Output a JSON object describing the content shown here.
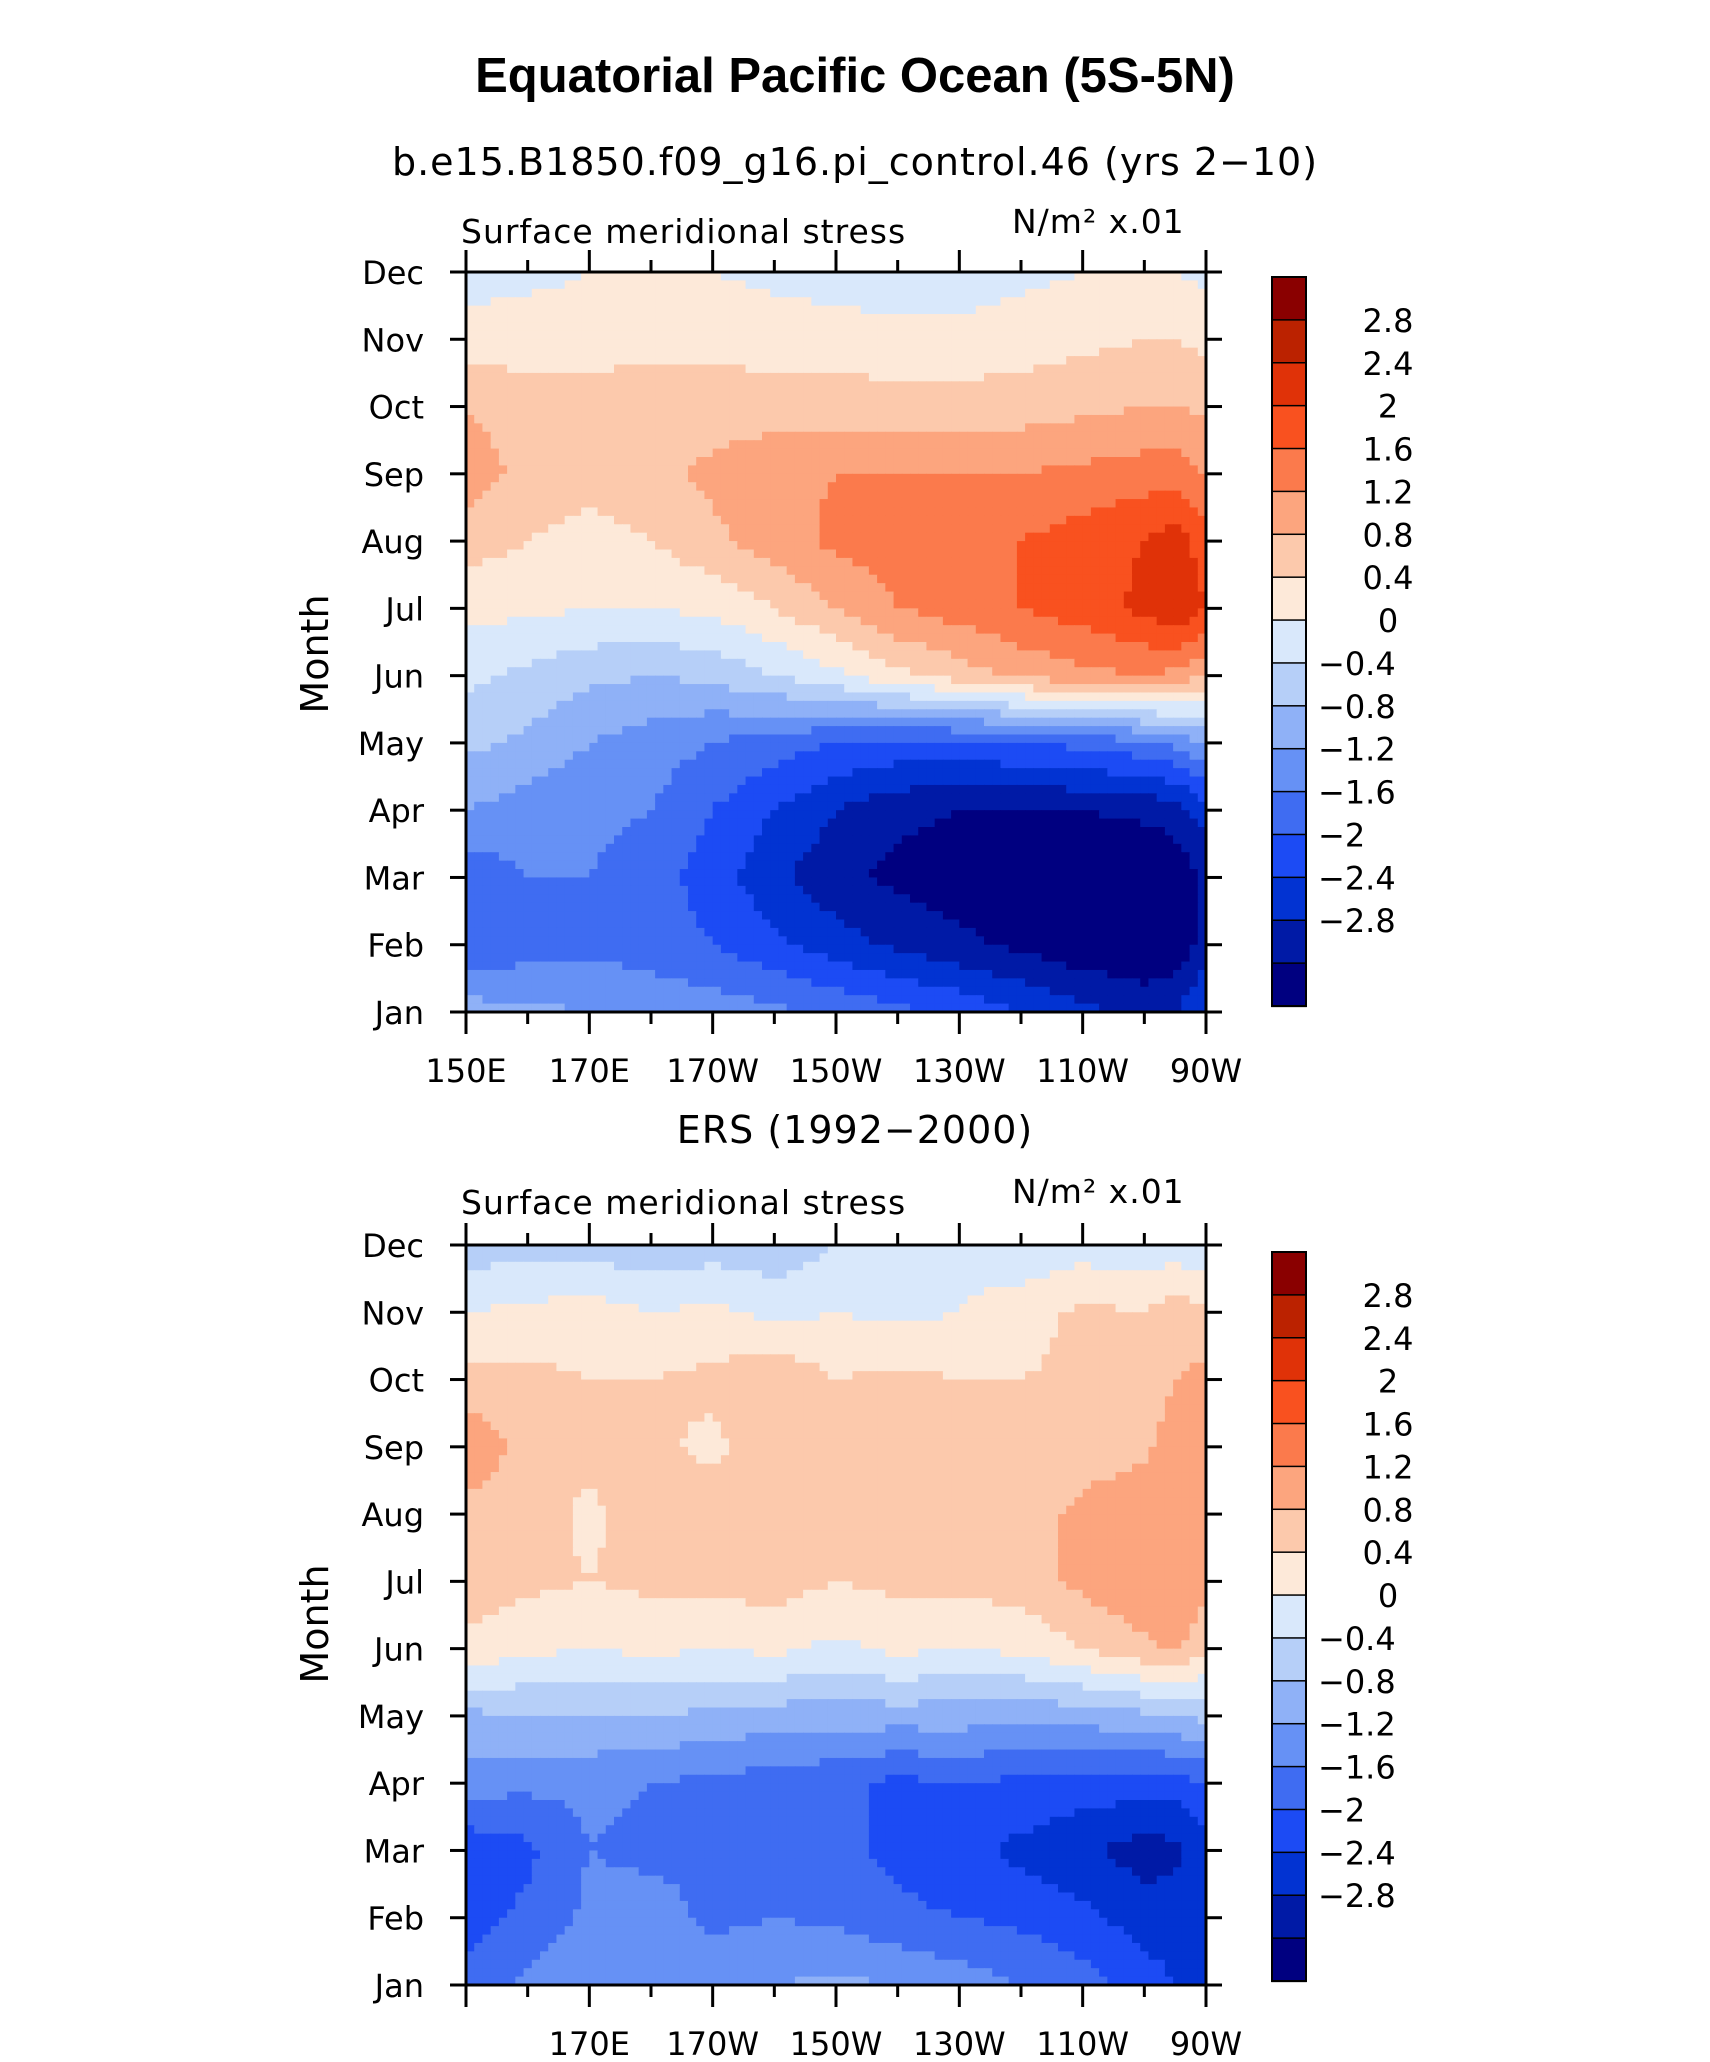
{
  "title": "Equatorial Pacific Ocean (5S-5N)",
  "colors": {
    "palette": [
      "#000080",
      "#001aa6",
      "#0233d2",
      "#1c4bf4",
      "#3f6cf2",
      "#6691f5",
      "#8fb1f7",
      "#b6cff8",
      "#d9e8fb",
      "#fde9d9",
      "#fcc9ac",
      "#fca57e",
      "#fb7a4c",
      "#f9511f",
      "#e03208",
      "#bb2200",
      "#8a0000"
    ],
    "axis": "#000000"
  },
  "chart_data": [
    {
      "type": "heatmap",
      "title": "b.e15.B1850.f09_g16.pi_control.46 (yrs 2−10)",
      "left_label": "Surface meridional stress",
      "units_label": "N/m² x.01",
      "ylabel": "Month",
      "x_ticks": [
        "150E",
        "170E",
        "170W",
        "150W",
        "130W",
        "110W",
        "90W"
      ],
      "x_range": [
        150,
        270
      ],
      "y_ticks": [
        "Jan",
        "Feb",
        "Mar",
        "Apr",
        "May",
        "Jun",
        "Jul",
        "Aug",
        "Sep",
        "Oct",
        "Nov",
        "Dec"
      ],
      "colorbar_labels": [
        "2.8",
        "2.4",
        "2",
        "1.6",
        "1.2",
        "0.8",
        "0.4",
        "0",
        "−0.4",
        "−0.8",
        "−1.2",
        "−1.6",
        "−2",
        "−2.4",
        "−2.8"
      ],
      "levels": [
        -3.2,
        -2.8,
        -2.4,
        -2.0,
        -1.6,
        -1.2,
        -0.8,
        -0.4,
        0,
        0.4,
        0.8,
        1.2,
        1.6,
        2.0,
        2.4,
        2.8,
        3.2
      ],
      "lon": [
        150,
        160,
        170,
        180,
        190,
        200,
        210,
        220,
        230,
        240,
        250,
        260,
        265,
        270
      ],
      "values": [
        [
          -0.6,
          -0.7,
          -0.8,
          -0.9,
          -1.0,
          -1.1,
          -1.3,
          -1.5,
          -1.7,
          -2.0,
          -2.3,
          -2.5,
          -2.4,
          -2.0
        ],
        [
          -1.6,
          -1.4,
          -1.3,
          -1.4,
          -1.6,
          -1.9,
          -2.2,
          -2.5,
          -2.7,
          -2.9,
          -3.1,
          -3.2,
          -3.1,
          -2.6
        ],
        [
          -1.5,
          -1.2,
          -1.2,
          -1.4,
          -1.8,
          -2.3,
          -2.7,
          -2.9,
          -3.0,
          -3.1,
          -3.2,
          -3.2,
          -3.1,
          -2.7
        ],
        [
          -0.8,
          -1.0,
          -1.1,
          -1.2,
          -1.6,
          -2.0,
          -2.4,
          -2.7,
          -2.8,
          -2.8,
          -2.8,
          -2.7,
          -2.6,
          -2.2
        ],
        [
          -0.3,
          -0.5,
          -0.8,
          -1.0,
          -1.2,
          -1.4,
          -1.6,
          -1.7,
          -1.7,
          -1.6,
          -1.5,
          -1.3,
          -1.1,
          -0.8
        ],
        [
          0.1,
          -0.1,
          -0.3,
          -0.4,
          -0.3,
          0.0,
          0.3,
          0.7,
          1.0,
          1.3,
          1.5,
          1.6,
          1.5,
          1.2
        ],
        [
          0.5,
          0.5,
          0.4,
          0.4,
          0.5,
          0.8,
          1.2,
          1.6,
          1.8,
          2.0,
          2.2,
          2.5,
          2.8,
          2.4
        ],
        [
          1.0,
          0.8,
          0.6,
          0.8,
          1.1,
          1.4,
          1.7,
          1.8,
          1.9,
          2.0,
          2.2,
          2.4,
          2.6,
          2.2
        ],
        [
          1.4,
          1.1,
          1.0,
          1.1,
          1.3,
          1.5,
          1.6,
          1.6,
          1.6,
          1.6,
          1.7,
          1.8,
          1.8,
          1.6
        ],
        [
          1.2,
          1.0,
          1.0,
          1.0,
          1.0,
          1.0,
          1.0,
          1.0,
          1.0,
          1.0,
          1.1,
          1.2,
          1.2,
          1.1
        ],
        [
          0.6,
          0.6,
          0.6,
          0.7,
          0.7,
          0.6,
          0.6,
          0.5,
          0.5,
          0.6,
          0.7,
          0.8,
          0.8,
          0.7
        ],
        [
          0.2,
          0.3,
          0.4,
          0.4,
          0.4,
          0.3,
          0.2,
          0.2,
          0.2,
          0.3,
          0.4,
          0.5,
          0.4,
          0.3
        ]
      ]
    },
    {
      "type": "heatmap",
      "title": "ERS (1992−2000)",
      "left_label": "Surface meridional stress",
      "units_label": "N/m² x.01",
      "ylabel": "Month",
      "x_ticks": [
        "170E",
        "170W",
        "150W",
        "130W",
        "110W",
        "90W"
      ],
      "x_range": [
        150,
        270
      ],
      "y_ticks": [
        "Jan",
        "Feb",
        "Mar",
        "Apr",
        "May",
        "Jun",
        "Jul",
        "Aug",
        "Sep",
        "Oct",
        "Nov",
        "Dec"
      ],
      "colorbar_labels": [
        "2.8",
        "2.4",
        "2",
        "1.6",
        "1.2",
        "0.8",
        "0.4",
        "0",
        "−0.4",
        "−0.8",
        "−1.2",
        "−1.6",
        "−2",
        "−2.4",
        "−2.8"
      ],
      "levels": [
        -3.2,
        -2.8,
        -2.4,
        -2.0,
        -1.6,
        -1.2,
        -0.8,
        -0.4,
        0,
        0.4,
        0.8,
        1.2,
        1.6,
        2.0,
        2.4,
        2.8,
        3.2
      ],
      "lon": [
        150,
        160,
        170,
        180,
        190,
        200,
        210,
        220,
        230,
        240,
        250,
        260,
        265,
        270
      ],
      "values": [
        [
          -1.4,
          -1.1,
          -0.9,
          -0.8,
          -0.9,
          -0.8,
          -0.7,
          -0.8,
          -1.0,
          -1.2,
          -1.4,
          -1.8,
          -2.0,
          -2.0
        ],
        [
          -1.8,
          -1.5,
          -1.1,
          -1.0,
          -1.3,
          -1.2,
          -1.3,
          -1.5,
          -1.6,
          -1.7,
          -1.9,
          -2.2,
          -2.2,
          -2.1
        ],
        [
          -1.9,
          -1.7,
          -1.2,
          -1.3,
          -1.3,
          -1.4,
          -1.5,
          -1.7,
          -1.9,
          -2.1,
          -2.3,
          -2.6,
          -2.5,
          -2.2
        ],
        [
          -1.0,
          -1.1,
          -1.1,
          -1.2,
          -1.3,
          -1.4,
          -1.5,
          -1.7,
          -1.6,
          -1.7,
          -1.8,
          -1.8,
          -1.8,
          -1.6
        ],
        [
          -0.5,
          -0.4,
          -0.4,
          -0.4,
          -0.5,
          -0.6,
          -0.6,
          -0.6,
          -0.6,
          -0.7,
          -0.6,
          -0.5,
          -0.4,
          -0.3
        ],
        [
          0.7,
          0.5,
          0.4,
          0.5,
          0.4,
          0.5,
          0.3,
          0.5,
          0.4,
          0.5,
          0.8,
          1.1,
          1.3,
          0.9
        ],
        [
          1.0,
          0.9,
          0.8,
          0.9,
          0.9,
          1.0,
          0.8,
          0.9,
          0.9,
          1.0,
          1.3,
          1.6,
          1.6,
          1.3
        ],
        [
          1.0,
          1.0,
          0.7,
          1.1,
          1.0,
          1.1,
          1.0,
          1.1,
          1.0,
          1.0,
          1.3,
          1.5,
          1.5,
          1.3
        ],
        [
          1.6,
          1.0,
          0.9,
          0.9,
          0.7,
          1.1,
          0.9,
          1.0,
          1.0,
          1.0,
          1.0,
          1.1,
          1.4,
          1.4
        ],
        [
          0.9,
          0.9,
          0.8,
          0.8,
          0.9,
          1.1,
          0.8,
          0.9,
          0.8,
          0.8,
          0.9,
          1.0,
          1.2,
          1.3
        ],
        [
          0.4,
          0.5,
          0.6,
          0.4,
          0.5,
          0.3,
          0.4,
          0.3,
          0.4,
          0.6,
          0.9,
          0.8,
          1.0,
          0.9
        ],
        [
          -0.2,
          -0.2,
          -0.2,
          -0.3,
          -0.2,
          -0.3,
          0.0,
          0.2,
          0.3,
          0.1,
          0.2,
          0.1,
          0.2,
          0.0
        ]
      ]
    }
  ]
}
